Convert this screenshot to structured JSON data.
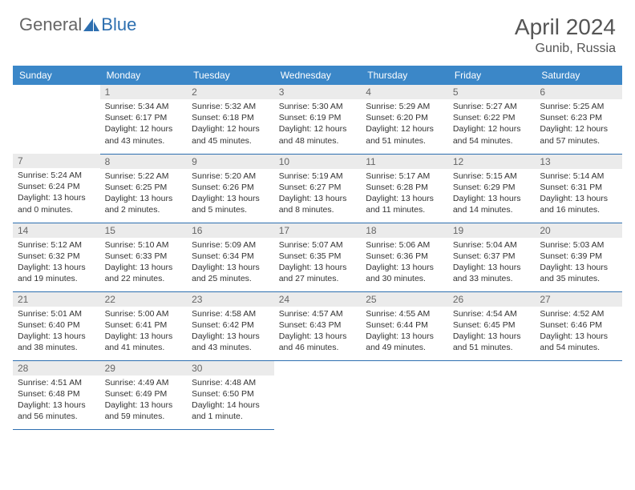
{
  "brand": {
    "part1": "General",
    "part2": "Blue"
  },
  "title": "April 2024",
  "location": "Gunib, Russia",
  "colors": {
    "header_bg": "#3b87c8",
    "border": "#2d6fb0",
    "daynum_bg": "#ebebeb",
    "text": "#333333",
    "muted": "#666666",
    "white": "#ffffff"
  },
  "weekdays": [
    "Sunday",
    "Monday",
    "Tuesday",
    "Wednesday",
    "Thursday",
    "Friday",
    "Saturday"
  ],
  "weeks": [
    [
      null,
      {
        "n": "1",
        "sr": "5:34 AM",
        "ss": "6:17 PM",
        "dl": "12 hours and 43 minutes."
      },
      {
        "n": "2",
        "sr": "5:32 AM",
        "ss": "6:18 PM",
        "dl": "12 hours and 45 minutes."
      },
      {
        "n": "3",
        "sr": "5:30 AM",
        "ss": "6:19 PM",
        "dl": "12 hours and 48 minutes."
      },
      {
        "n": "4",
        "sr": "5:29 AM",
        "ss": "6:20 PM",
        "dl": "12 hours and 51 minutes."
      },
      {
        "n": "5",
        "sr": "5:27 AM",
        "ss": "6:22 PM",
        "dl": "12 hours and 54 minutes."
      },
      {
        "n": "6",
        "sr": "5:25 AM",
        "ss": "6:23 PM",
        "dl": "12 hours and 57 minutes."
      }
    ],
    [
      {
        "n": "7",
        "sr": "5:24 AM",
        "ss": "6:24 PM",
        "dl": "13 hours and 0 minutes."
      },
      {
        "n": "8",
        "sr": "5:22 AM",
        "ss": "6:25 PM",
        "dl": "13 hours and 2 minutes."
      },
      {
        "n": "9",
        "sr": "5:20 AM",
        "ss": "6:26 PM",
        "dl": "13 hours and 5 minutes."
      },
      {
        "n": "10",
        "sr": "5:19 AM",
        "ss": "6:27 PM",
        "dl": "13 hours and 8 minutes."
      },
      {
        "n": "11",
        "sr": "5:17 AM",
        "ss": "6:28 PM",
        "dl": "13 hours and 11 minutes."
      },
      {
        "n": "12",
        "sr": "5:15 AM",
        "ss": "6:29 PM",
        "dl": "13 hours and 14 minutes."
      },
      {
        "n": "13",
        "sr": "5:14 AM",
        "ss": "6:31 PM",
        "dl": "13 hours and 16 minutes."
      }
    ],
    [
      {
        "n": "14",
        "sr": "5:12 AM",
        "ss": "6:32 PM",
        "dl": "13 hours and 19 minutes."
      },
      {
        "n": "15",
        "sr": "5:10 AM",
        "ss": "6:33 PM",
        "dl": "13 hours and 22 minutes."
      },
      {
        "n": "16",
        "sr": "5:09 AM",
        "ss": "6:34 PM",
        "dl": "13 hours and 25 minutes."
      },
      {
        "n": "17",
        "sr": "5:07 AM",
        "ss": "6:35 PM",
        "dl": "13 hours and 27 minutes."
      },
      {
        "n": "18",
        "sr": "5:06 AM",
        "ss": "6:36 PM",
        "dl": "13 hours and 30 minutes."
      },
      {
        "n": "19",
        "sr": "5:04 AM",
        "ss": "6:37 PM",
        "dl": "13 hours and 33 minutes."
      },
      {
        "n": "20",
        "sr": "5:03 AM",
        "ss": "6:39 PM",
        "dl": "13 hours and 35 minutes."
      }
    ],
    [
      {
        "n": "21",
        "sr": "5:01 AM",
        "ss": "6:40 PM",
        "dl": "13 hours and 38 minutes."
      },
      {
        "n": "22",
        "sr": "5:00 AM",
        "ss": "6:41 PM",
        "dl": "13 hours and 41 minutes."
      },
      {
        "n": "23",
        "sr": "4:58 AM",
        "ss": "6:42 PM",
        "dl": "13 hours and 43 minutes."
      },
      {
        "n": "24",
        "sr": "4:57 AM",
        "ss": "6:43 PM",
        "dl": "13 hours and 46 minutes."
      },
      {
        "n": "25",
        "sr": "4:55 AM",
        "ss": "6:44 PM",
        "dl": "13 hours and 49 minutes."
      },
      {
        "n": "26",
        "sr": "4:54 AM",
        "ss": "6:45 PM",
        "dl": "13 hours and 51 minutes."
      },
      {
        "n": "27",
        "sr": "4:52 AM",
        "ss": "6:46 PM",
        "dl": "13 hours and 54 minutes."
      }
    ],
    [
      {
        "n": "28",
        "sr": "4:51 AM",
        "ss": "6:48 PM",
        "dl": "13 hours and 56 minutes."
      },
      {
        "n": "29",
        "sr": "4:49 AM",
        "ss": "6:49 PM",
        "dl": "13 hours and 59 minutes."
      },
      {
        "n": "30",
        "sr": "4:48 AM",
        "ss": "6:50 PM",
        "dl": "14 hours and 1 minute."
      },
      null,
      null,
      null,
      null
    ]
  ],
  "labels": {
    "sunrise": "Sunrise:",
    "sunset": "Sunset:",
    "daylight": "Daylight:"
  }
}
